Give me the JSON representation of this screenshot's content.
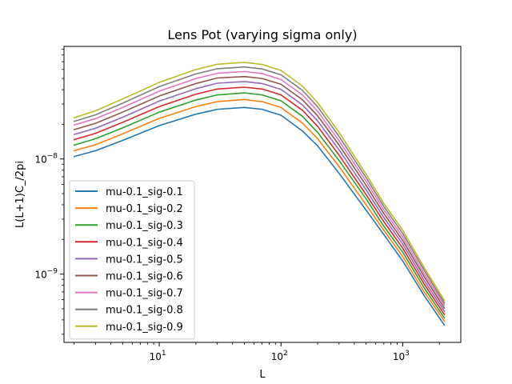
{
  "chart_data": {
    "type": "line",
    "title": "Lens Pot (varying sigma only)",
    "xlabel": "L",
    "ylabel": "L(L+1)C_/2pi",
    "xscale": "log",
    "yscale": "log",
    "xlim": [
      1.65,
      3000
    ],
    "ylim": [
      2.55e-10,
      9.5e-08
    ],
    "x_ticks": [
      {
        "value": 10,
        "base": "10",
        "exp": "1"
      },
      {
        "value": 100,
        "base": "10",
        "exp": "2"
      },
      {
        "value": 1000,
        "base": "10",
        "exp": "3"
      }
    ],
    "y_ticks": [
      {
        "value": 1e-09,
        "base": "10",
        "exp": "−9"
      },
      {
        "value": 1e-08,
        "base": "10",
        "exp": "−8"
      }
    ],
    "legend_position": "lower-left",
    "grid": false,
    "x": [
      2,
      3,
      5,
      10,
      20,
      30,
      50,
      70,
      100,
      150,
      200,
      300,
      500,
      700,
      1000,
      1500,
      2200
    ],
    "series": [
      {
        "name": "mu-0.1_sig-0.1",
        "color": "#1f77b4",
        "values": [
          1.05e-08,
          1.18e-08,
          1.45e-08,
          1.95e-08,
          2.45e-08,
          2.7e-08,
          2.8e-08,
          2.7e-08,
          2.4e-08,
          1.75e-08,
          1.3e-08,
          7.5e-09,
          3.6e-09,
          2.2e-09,
          1.3e-09,
          6.5e-10,
          3.6e-10
        ]
      },
      {
        "name": "mu-0.1_sig-0.2",
        "color": "#ff7f0e",
        "values": [
          1.18e-08,
          1.33e-08,
          1.65e-08,
          2.25e-08,
          2.85e-08,
          3.15e-08,
          3.28e-08,
          3.15e-08,
          2.8e-08,
          2.05e-08,
          1.5e-08,
          8.6e-09,
          4e-09,
          2.4e-09,
          1.42e-09,
          7e-10,
          3.9e-10
        ]
      },
      {
        "name": "mu-0.1_sig-0.3",
        "color": "#2ca02c",
        "values": [
          1.32e-08,
          1.5e-08,
          1.86e-08,
          2.55e-08,
          3.25e-08,
          3.6e-08,
          3.75e-08,
          3.6e-08,
          3.2e-08,
          2.35e-08,
          1.7e-08,
          9.7e-09,
          4.5e-09,
          2.6e-09,
          1.55e-09,
          7.6e-10,
          4.15e-10
        ]
      },
      {
        "name": "mu-0.1_sig-0.4",
        "color": "#d62728",
        "values": [
          1.47e-08,
          1.67e-08,
          2.08e-08,
          2.85e-08,
          3.65e-08,
          4.05e-08,
          4.2e-08,
          4.05e-08,
          3.6e-08,
          2.65e-08,
          1.92e-08,
          1.08e-08,
          4.9e-09,
          2.85e-09,
          1.68e-09,
          8.2e-10,
          4.45e-10
        ]
      },
      {
        "name": "mu-0.1_sig-0.5",
        "color": "#9467bd",
        "values": [
          1.63e-08,
          1.85e-08,
          2.3e-08,
          3.18e-08,
          4.08e-08,
          4.55e-08,
          4.7e-08,
          4.52e-08,
          4.02e-08,
          2.95e-08,
          2.14e-08,
          1.2e-08,
          5.4e-09,
          3.1e-09,
          1.82e-09,
          8.8e-10,
          4.75e-10
        ]
      },
      {
        "name": "mu-0.1_sig-0.6",
        "color": "#8c564b",
        "values": [
          1.8e-08,
          2.04e-08,
          2.55e-08,
          3.52e-08,
          4.52e-08,
          5.05e-08,
          5.2e-08,
          5e-08,
          4.45e-08,
          3.27e-08,
          2.37e-08,
          1.32e-08,
          5.9e-09,
          3.35e-09,
          1.96e-09,
          9.5e-10,
          5.05e-10
        ]
      },
      {
        "name": "mu-0.1_sig-0.7",
        "color": "#e377c2",
        "values": [
          1.97e-08,
          2.24e-08,
          2.8e-08,
          3.88e-08,
          5e-08,
          5.55e-08,
          5.75e-08,
          5.52e-08,
          4.9e-08,
          3.6e-08,
          2.6e-08,
          1.44e-08,
          6.4e-09,
          3.6e-09,
          2.1e-09,
          1.01e-09,
          5.35e-10
        ]
      },
      {
        "name": "mu-0.1_sig-0.8",
        "color": "#7f7f7f",
        "values": [
          2.12e-08,
          2.42e-08,
          3.05e-08,
          4.25e-08,
          5.48e-08,
          6.08e-08,
          6.3e-08,
          6.05e-08,
          5.38e-08,
          3.95e-08,
          2.84e-08,
          1.57e-08,
          6.9e-09,
          3.85e-09,
          2.25e-09,
          1.08e-09,
          5.6e-10
        ]
      },
      {
        "name": "mu-0.1_sig-0.9",
        "color": "#bcbd22",
        "values": [
          2.28e-08,
          2.62e-08,
          3.32e-08,
          4.62e-08,
          5.98e-08,
          6.65e-08,
          6.9e-08,
          6.62e-08,
          5.88e-08,
          4.3e-08,
          3.08e-08,
          1.7e-08,
          7.4e-09,
          4.1e-09,
          2.4e-09,
          1.14e-09,
          5.9e-10
        ]
      }
    ]
  }
}
